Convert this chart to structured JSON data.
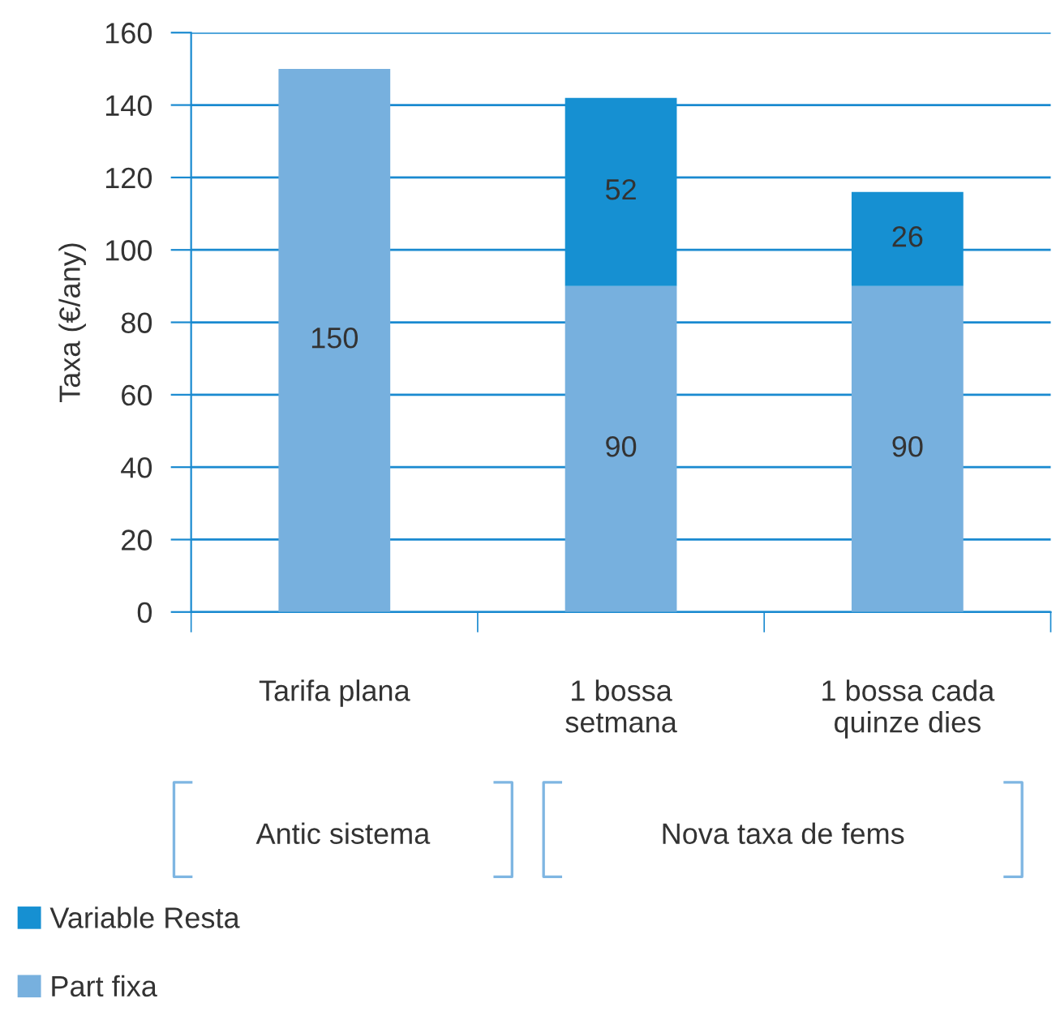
{
  "chart_data": {
    "type": "bar",
    "stacked": true,
    "ylabel": "Taxa (€/any)",
    "categories": [
      "Tarifa plana",
      "1 bossa\nsetmana",
      "1 bossa cada\nquinze dies"
    ],
    "series": [
      {
        "name": "Part fixa",
        "color": "#77b0de",
        "values": [
          150,
          90,
          90
        ]
      },
      {
        "name": "Variable Resta",
        "color": "#1690d2",
        "values": [
          null,
          52,
          26
        ]
      }
    ],
    "ylim": [
      0,
      160
    ],
    "yticks": [
      0,
      20,
      40,
      60,
      80,
      100,
      120,
      140,
      160
    ],
    "grid": "y",
    "data_labels": true,
    "legend": "bottom left",
    "annotations": [
      "Antic sistema",
      "Nova taxa de fems"
    ]
  }
}
